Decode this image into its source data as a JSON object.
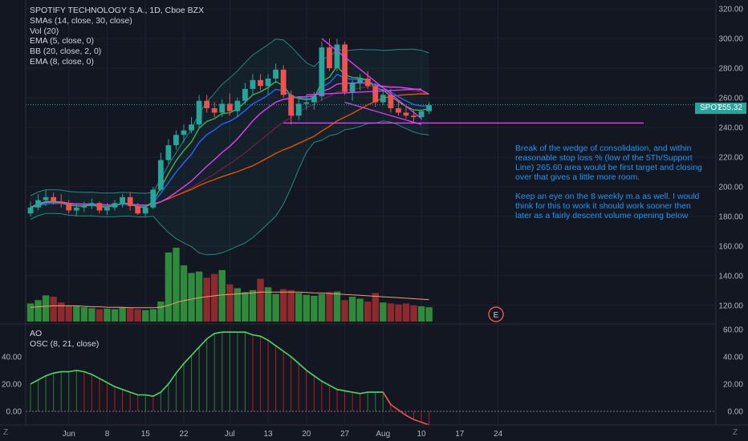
{
  "legend": {
    "title": "SPOTIFY TECHNOLOGY S.A., 1D, Cboe BZX",
    "studies": [
      "SMAs (14, close, 30, close)",
      "Vol (20)",
      "EMA (5, close, 0)",
      "BB (20, close, 2, 0)",
      "EMA (8, close, 0)"
    ]
  },
  "osc_legend": {
    "name": "AO",
    "params": "OSC (8, 21, close)"
  },
  "annotation": {
    "p1": "Break of the wedge of consolidation, and within reasonable stop loss % (low of the 5Th/Support Line) 265.60 area would be first target and closing over that gives a little more room.",
    "p2": "Keep an eye on the 8 weekly m.a as well.  I would think for this to work it should work sooner then later as a fairly descent volume opening below"
  },
  "price_badge": {
    "symbol": "SPOT",
    "price": "255.32",
    "color": "#26a69a"
  },
  "earnings_marker": "E",
  "corner": {
    "left": "Z",
    "right": "Z"
  },
  "colors": {
    "up": "#26a69a",
    "down": "#ef5350",
    "volume_up": "#2f8a3c",
    "volume_down": "#8e2a2e",
    "ema5": "#4caf50",
    "ema8": "#2962ff",
    "sma14": "#e040fb",
    "sma30": "#e65100",
    "bb": "#26a69a",
    "trend": "#e040fb",
    "osc_line": "#4cd964",
    "osc_neg": "#ef5350",
    "annotation": "#2196f3"
  },
  "chart_data": [
    {
      "type": "candlestick",
      "title": "SPOTIFY TECHNOLOGY S.A., 1D, Cboe BZX",
      "y_axis_ticks": [
        "320.00",
        "300.00",
        "280.00",
        "260.00",
        "240.00",
        "220.00",
        "200.00",
        "180.00",
        "160.00",
        "140.00",
        "120.00"
      ],
      "ylim": [
        108,
        326
      ],
      "x_axis_ticks": [
        "Jun",
        "8",
        "15",
        "22",
        "Jul",
        "13",
        "20",
        "27",
        "Aug",
        "10",
        "17",
        "24"
      ],
      "x_tick_index": [
        5,
        10,
        15,
        20,
        26,
        31,
        36,
        41,
        46,
        51,
        56,
        61
      ],
      "candles": [
        [
          182,
          190,
          180,
          186
        ],
        [
          186,
          195,
          184,
          191
        ],
        [
          191,
          198,
          187,
          193
        ],
        [
          193,
          196,
          188,
          190
        ],
        [
          190,
          195,
          186,
          189
        ],
        [
          189,
          191,
          182,
          184
        ],
        [
          184,
          188,
          180,
          186
        ],
        [
          186,
          190,
          183,
          187
        ],
        [
          187,
          192,
          185,
          189
        ],
        [
          189,
          190,
          182,
          184
        ],
        [
          184,
          189,
          181,
          186
        ],
        [
          186,
          191,
          184,
          189
        ],
        [
          189,
          195,
          186,
          193
        ],
        [
          193,
          196,
          184,
          187
        ],
        [
          187,
          189,
          181,
          182
        ],
        [
          182,
          187,
          180,
          186
        ],
        [
          186,
          200,
          185,
          198
        ],
        [
          198,
          223,
          197,
          218
        ],
        [
          218,
          232,
          215,
          228
        ],
        [
          228,
          238,
          225,
          235
        ],
        [
          235,
          242,
          230,
          238
        ],
        [
          238,
          247,
          236,
          242
        ],
        [
          242,
          262,
          240,
          258
        ],
        [
          258,
          262,
          250,
          253
        ],
        [
          253,
          257,
          247,
          250
        ],
        [
          250,
          259,
          247,
          256
        ],
        [
          256,
          263,
          248,
          251
        ],
        [
          251,
          260,
          247,
          258
        ],
        [
          258,
          270,
          256,
          266
        ],
        [
          266,
          276,
          262,
          272
        ],
        [
          272,
          276,
          265,
          268
        ],
        [
          268,
          276,
          262,
          273
        ],
        [
          273,
          283,
          270,
          279
        ],
        [
          279,
          282,
          260,
          262
        ],
        [
          262,
          265,
          242,
          248
        ],
        [
          248,
          260,
          245,
          256
        ],
        [
          256,
          262,
          252,
          257
        ],
        [
          257,
          264,
          252,
          261
        ],
        [
          261,
          298,
          258,
          294
        ],
        [
          294,
          300,
          278,
          280
        ],
        [
          280,
          300,
          278,
          296
        ],
        [
          296,
          298,
          262,
          264
        ],
        [
          264,
          272,
          258,
          270
        ],
        [
          270,
          276,
          265,
          273
        ],
        [
          273,
          278,
          266,
          268
        ],
        [
          268,
          270,
          254,
          257
        ],
        [
          257,
          266,
          255,
          262
        ],
        [
          262,
          266,
          250,
          253
        ],
        [
          253,
          258,
          248,
          250
        ],
        [
          250,
          254,
          246,
          248
        ],
        [
          248,
          252,
          244,
          247
        ],
        [
          247,
          252,
          245,
          251
        ],
        [
          251,
          257,
          249,
          255
        ]
      ],
      "volume_ticks": [],
      "volume": [
        38,
        45,
        55,
        52,
        40,
        34,
        32,
        30,
        28,
        26,
        27,
        26,
        30,
        28,
        26,
        24,
        26,
        42,
        145,
        155,
        118,
        102,
        105,
        92,
        100,
        108,
        78,
        70,
        62,
        66,
        90,
        72,
        58,
        68,
        66,
        60,
        56,
        54,
        58,
        62,
        63,
        45,
        52,
        48,
        42,
        60,
        40,
        38,
        36,
        38,
        34,
        32,
        30
      ],
      "volume_ma": [
        30,
        31,
        32,
        33,
        33,
        33,
        33,
        32,
        31,
        31,
        30,
        30,
        30,
        29,
        29,
        29,
        29,
        30,
        34,
        40,
        44,
        47,
        50,
        52,
        54,
        56,
        57,
        58,
        59,
        60,
        62,
        62,
        62,
        62,
        62,
        62,
        61,
        60,
        60,
        59,
        58,
        57,
        56,
        55,
        54,
        53,
        52,
        51,
        50,
        49,
        48,
        47,
        46
      ],
      "series_labels": [
        "EMA (5, close, 0)",
        "EMA (8, close, 0)",
        "SMAs (14, close, 30, close)",
        "BB (20, close, 2, 0)"
      ],
      "support_line_y": 243,
      "wedge_upper": [
        [
          38,
          300
        ],
        [
          51,
          246
        ]
      ],
      "wedge_lower": [
        [
          41,
          257
        ],
        [
          51,
          242
        ]
      ]
    },
    {
      "type": "line",
      "title": "AO",
      "subtitle": "OSC (8, 21, close)",
      "y_axis_ticks_left": [
        "40.00",
        "20.00",
        "0.00"
      ],
      "y_axis_ticks_right": [
        "60.00",
        "40.00",
        "20.00",
        "0.00"
      ],
      "ylim": [
        -10,
        64
      ],
      "values": [
        20,
        23,
        26,
        28,
        29,
        29,
        30,
        29,
        27,
        24,
        21,
        18,
        16,
        14,
        12,
        12,
        11,
        14,
        20,
        28,
        35,
        41,
        47,
        53,
        57,
        58,
        58,
        58,
        58,
        56,
        55,
        52,
        48,
        44,
        40,
        35,
        30,
        26,
        22,
        19,
        16,
        15,
        14,
        13,
        14,
        14,
        14,
        5,
        1,
        -3,
        -6,
        -8,
        -10
      ]
    }
  ]
}
